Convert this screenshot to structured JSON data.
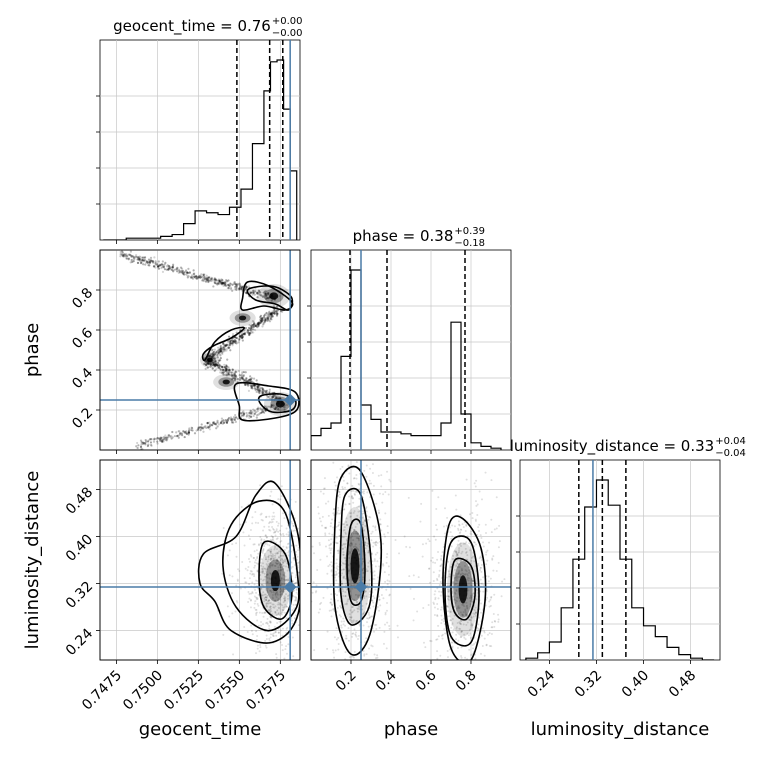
{
  "chart_data": {
    "type": "corner",
    "parameters": [
      "geocent_time",
      "phase",
      "luminosity_distance"
    ],
    "truths": {
      "geocent_time": 0.7581,
      "phase": 0.25,
      "luminosity_distance": 0.314
    },
    "colors": {
      "truth": "#4a7ba7",
      "hist": "#000000",
      "grid": "#c8c8c8",
      "density": "#000000"
    },
    "titles": [
      {
        "param": "geocent_time",
        "label": "geocent_time = 0.76",
        "sup": "+0.00",
        "sub": "−0.00"
      },
      {
        "param": "phase",
        "label": "phase = 0.38",
        "sup": "+0.39",
        "sub": "−0.18"
      },
      {
        "param": "luminosity_distance",
        "label": "luminosity_distance = 0.33",
        "sup": "+0.04",
        "sub": "−0.04"
      }
    ],
    "axes": {
      "geocent_time": {
        "range": [
          0.7465,
          0.7587
        ],
        "ticks": [
          "0.7475",
          "0.7500",
          "0.7525",
          "0.7550",
          "0.7575"
        ],
        "tick_values": [
          0.7475,
          0.75,
          0.7525,
          0.755,
          0.7575
        ]
      },
      "phase": {
        "range": [
          0.0,
          1.0
        ],
        "ticks": [
          "0.2",
          "0.4",
          "0.6",
          "0.8"
        ],
        "tick_values": [
          0.2,
          0.4,
          0.6,
          0.8
        ]
      },
      "luminosity_distance": {
        "range": [
          0.19,
          0.53
        ],
        "ticks": [
          "0.24",
          "0.32",
          "0.40",
          "0.48"
        ],
        "tick_values": [
          0.24,
          0.32,
          0.4,
          0.48
        ]
      }
    },
    "axis_labels": {
      "x": [
        "geocent_time",
        "phase",
        "luminosity_distance"
      ],
      "y": [
        "phase",
        "luminosity_distance"
      ]
    },
    "quantiles": {
      "geocent_time": [
        0.75485,
        0.75685,
        0.75765
      ],
      "phase": [
        0.195,
        0.38,
        0.77
      ],
      "luminosity_distance": [
        0.29,
        0.33,
        0.37
      ]
    },
    "histograms": {
      "geocent_time": {
        "bin_edges": [
          0.7467,
          0.7474,
          0.7481,
          0.7488,
          0.7495,
          0.7502,
          0.7509,
          0.7516,
          0.7523,
          0.753,
          0.7537,
          0.7544,
          0.7551,
          0.7558,
          0.7565,
          0.7569,
          0.7573,
          0.7577,
          0.7581,
          0.7585
        ],
        "counts": [
          0,
          0,
          1,
          1,
          1,
          2,
          3,
          9,
          16,
          15,
          14,
          18,
          28,
          53,
          82,
          98,
          99,
          72,
          38
        ]
      },
      "phase": {
        "bin_edges": [
          0.0,
          0.05,
          0.1,
          0.15,
          0.2,
          0.25,
          0.3,
          0.35,
          0.4,
          0.45,
          0.5,
          0.55,
          0.6,
          0.65,
          0.7,
          0.75,
          0.8,
          0.85,
          0.9,
          0.95
        ],
        "counts": [
          8,
          12,
          15,
          52,
          100,
          25,
          17,
          10,
          10,
          9,
          8,
          8,
          8,
          15,
          71,
          20,
          4,
          2,
          1
        ]
      },
      "luminosity_distance": {
        "bin_edges": [
          0.2,
          0.22,
          0.24,
          0.26,
          0.28,
          0.3,
          0.32,
          0.34,
          0.36,
          0.38,
          0.4,
          0.42,
          0.44,
          0.46,
          0.48,
          0.5,
          0.52
        ],
        "counts": [
          1,
          4,
          10,
          29,
          56,
          85,
          100,
          86,
          56,
          29,
          19,
          13,
          7,
          3,
          1,
          0
        ]
      }
    },
    "density_blobs": {
      "phase_vs_geocent_time": [
        {
          "x": 0.7571,
          "y": 0.77,
          "sx": 0.0005,
          "sy": 0.03
        },
        {
          "x": 0.7575,
          "y": 0.23,
          "sx": 0.0005,
          "sy": 0.03
        },
        {
          "x": 0.7552,
          "y": 0.66,
          "sx": 0.0004,
          "sy": 0.02
        },
        {
          "x": 0.7542,
          "y": 0.34,
          "sx": 0.0004,
          "sy": 0.02
        },
        {
          "x": 0.7532,
          "y": 0.45,
          "sx": 0.0003,
          "sy": 0.02
        }
      ],
      "luminosity_distance_vs_geocent_time": [
        {
          "x": 0.7572,
          "y": 0.325,
          "sx": 0.0005,
          "sy": 0.03
        }
      ],
      "luminosity_distance_vs_phase": [
        {
          "x": 0.22,
          "y": 0.35,
          "sx": 0.04,
          "sy": 0.05
        },
        {
          "x": 0.76,
          "y": 0.31,
          "sx": 0.04,
          "sy": 0.04
        }
      ]
    },
    "contours": {
      "phase_vs_geocent_time": [
        [
          [
            0.7565,
            0.82
          ],
          [
            0.7574,
            0.81
          ],
          [
            0.7582,
            0.76
          ],
          [
            0.758,
            0.7
          ],
          [
            0.7572,
            0.73
          ],
          [
            0.756,
            0.75
          ],
          [
            0.7555,
            0.8
          ]
        ],
        [
          [
            0.7552,
            0.76
          ],
          [
            0.7555,
            0.84
          ],
          [
            0.7568,
            0.82
          ],
          [
            0.7582,
            0.74
          ],
          [
            0.7578,
            0.7
          ],
          [
            0.7565,
            0.72
          ],
          [
            0.7552,
            0.7
          ]
        ],
        [
          [
            0.7528,
            0.48
          ],
          [
            0.7534,
            0.52
          ],
          [
            0.7545,
            0.56
          ],
          [
            0.7553,
            0.61
          ],
          [
            0.7545,
            0.6
          ],
          [
            0.7535,
            0.54
          ],
          [
            0.7529,
            0.45
          ]
        ],
        [
          [
            0.7563,
            0.27
          ],
          [
            0.7575,
            0.28
          ],
          [
            0.7584,
            0.25
          ],
          [
            0.7582,
            0.2
          ],
          [
            0.757,
            0.19
          ],
          [
            0.7563,
            0.23
          ]
        ],
        [
          [
            0.7548,
            0.33
          ],
          [
            0.7568,
            0.32
          ],
          [
            0.7584,
            0.29
          ],
          [
            0.7585,
            0.2
          ],
          [
            0.7572,
            0.16
          ],
          [
            0.7552,
            0.15
          ],
          [
            0.755,
            0.22
          ]
        ]
      ],
      "luminosity_distance_vs_geocent_time": [
        [
          [
            0.7565,
            0.39
          ],
          [
            0.7578,
            0.37
          ],
          [
            0.7582,
            0.3
          ],
          [
            0.7576,
            0.26
          ],
          [
            0.7565,
            0.28
          ],
          [
            0.7562,
            0.33
          ]
        ],
        [
          [
            0.7545,
            0.42
          ],
          [
            0.7562,
            0.46
          ],
          [
            0.7578,
            0.44
          ],
          [
            0.7586,
            0.32
          ],
          [
            0.7583,
            0.27
          ],
          [
            0.7567,
            0.24
          ],
          [
            0.7548,
            0.28
          ],
          [
            0.754,
            0.35
          ]
        ],
        [
          [
            0.7528,
            0.37
          ],
          [
            0.7548,
            0.4
          ],
          [
            0.756,
            0.47
          ],
          [
            0.7572,
            0.49
          ],
          [
            0.7586,
            0.4
          ],
          [
            0.7586,
            0.27
          ],
          [
            0.757,
            0.22
          ],
          [
            0.7545,
            0.24
          ],
          [
            0.7535,
            0.29
          ],
          [
            0.7526,
            0.32
          ]
        ]
      ],
      "luminosity_distance_vs_phase": [
        [
          [
            0.2,
            0.42
          ],
          [
            0.25,
            0.42
          ],
          [
            0.27,
            0.34
          ],
          [
            0.25,
            0.29
          ],
          [
            0.2,
            0.29
          ],
          [
            0.18,
            0.35
          ]
        ],
        [
          [
            0.17,
            0.47
          ],
          [
            0.25,
            0.47
          ],
          [
            0.3,
            0.36
          ],
          [
            0.29,
            0.28
          ],
          [
            0.2,
            0.25
          ],
          [
            0.15,
            0.3
          ],
          [
            0.15,
            0.4
          ]
        ],
        [
          [
            0.15,
            0.5
          ],
          [
            0.25,
            0.51
          ],
          [
            0.35,
            0.39
          ],
          [
            0.3,
            0.24
          ],
          [
            0.2,
            0.2
          ],
          [
            0.12,
            0.28
          ],
          [
            0.12,
            0.42
          ]
        ],
        [
          [
            0.72,
            0.36
          ],
          [
            0.8,
            0.35
          ],
          [
            0.82,
            0.3
          ],
          [
            0.78,
            0.26
          ],
          [
            0.72,
            0.27
          ],
          [
            0.7,
            0.31
          ]
        ],
        [
          [
            0.7,
            0.39
          ],
          [
            0.8,
            0.39
          ],
          [
            0.84,
            0.3
          ],
          [
            0.8,
            0.22
          ],
          [
            0.7,
            0.23
          ],
          [
            0.67,
            0.31
          ]
        ],
        [
          [
            0.69,
            0.42
          ],
          [
            0.76,
            0.43
          ],
          [
            0.85,
            0.38
          ],
          [
            0.87,
            0.29
          ],
          [
            0.8,
            0.19
          ],
          [
            0.7,
            0.21
          ],
          [
            0.66,
            0.32
          ]
        ]
      ]
    }
  }
}
